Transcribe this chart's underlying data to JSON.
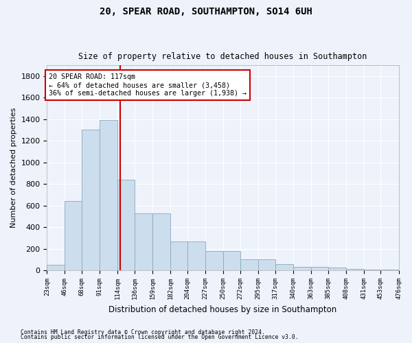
{
  "title1": "20, SPEAR ROAD, SOUTHAMPTON, SO14 6UH",
  "title2": "Size of property relative to detached houses in Southampton",
  "xlabel": "Distribution of detached houses by size in Southampton",
  "ylabel": "Number of detached properties",
  "bar_color": "#ccdded",
  "bar_edge_color": "#88aabb",
  "vline_x": 117,
  "vline_color": "#cc0000",
  "annotation_line1": "20 SPEAR ROAD: 117sqm",
  "annotation_line2": "← 64% of detached houses are smaller (3,458)",
  "annotation_line3": "36% of semi-detached houses are larger (1,938) →",
  "annotation_box_color": "white",
  "annotation_box_edge": "#cc0000",
  "bins": [
    23,
    46,
    68,
    91,
    114,
    136,
    159,
    182,
    204,
    227,
    250,
    272,
    295,
    317,
    340,
    363,
    385,
    408,
    431,
    453,
    476
  ],
  "values": [
    50,
    640,
    1300,
    1390,
    840,
    530,
    530,
    270,
    270,
    180,
    180,
    100,
    100,
    60,
    35,
    30,
    25,
    15,
    10,
    5
  ],
  "ylim": [
    0,
    1900
  ],
  "yticks": [
    0,
    200,
    400,
    600,
    800,
    1000,
    1200,
    1400,
    1600,
    1800
  ],
  "footnote1": "Contains HM Land Registry data © Crown copyright and database right 2024.",
  "footnote2": "Contains public sector information licensed under the Open Government Licence v3.0.",
  "bg_color": "#eef2fb",
  "plot_bg_color": "#eef2fb"
}
